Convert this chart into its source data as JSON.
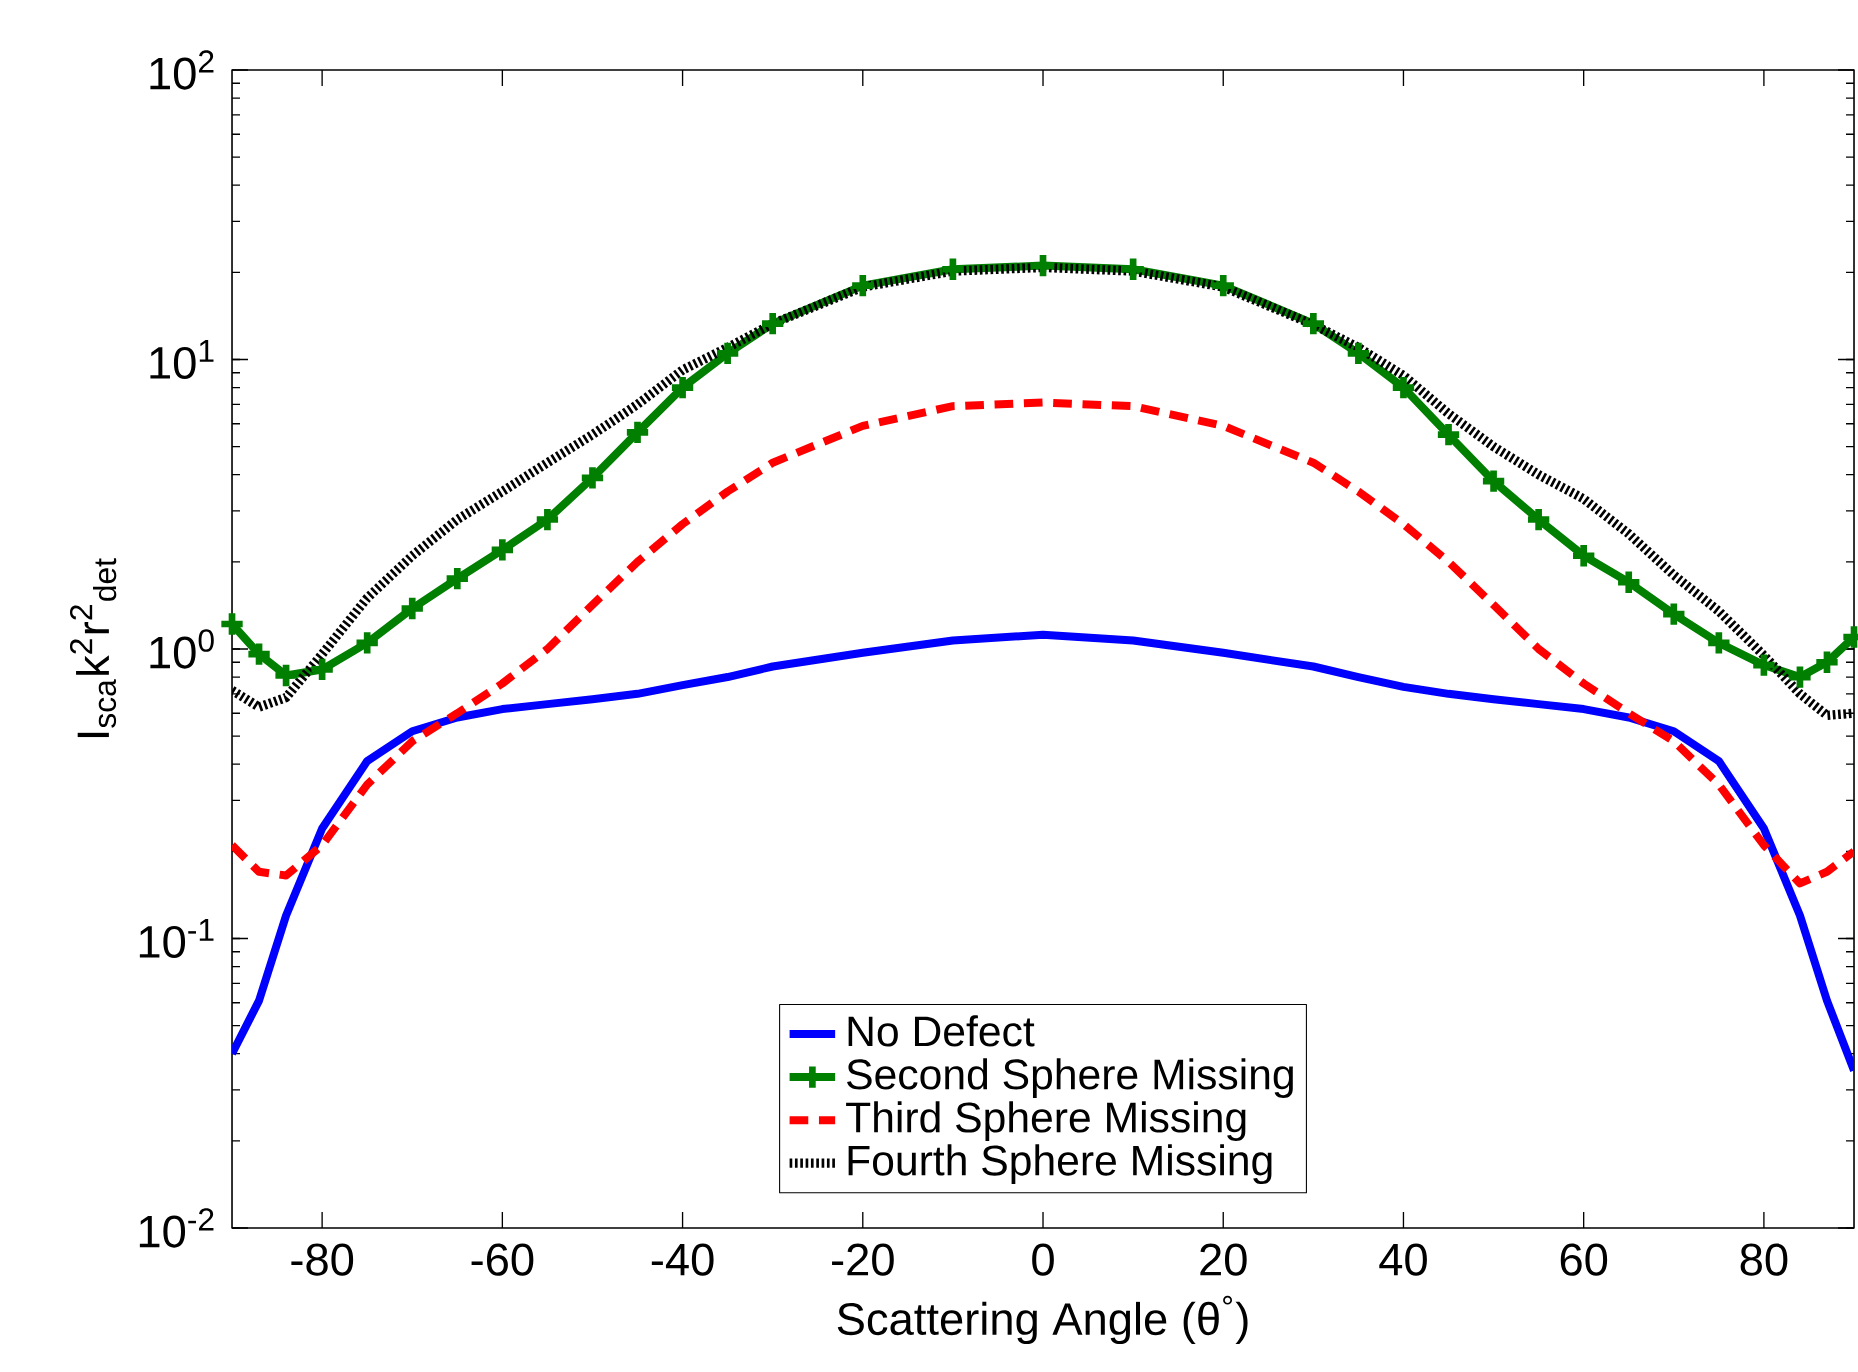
{
  "chart_data": {
    "type": "line",
    "xlabel": "Scattering Angle (θ$^{°}$)",
    "ylabel": "I$_{sca}$k$^{2}$r$^{2}$$_{det}$",
    "x": [
      -90,
      -87,
      -84,
      -80,
      -75,
      -70,
      -65,
      -60,
      -55,
      -50,
      -45,
      -40,
      -35,
      -30,
      -20,
      -10,
      0,
      10,
      20,
      30,
      35,
      40,
      45,
      50,
      55,
      60,
      65,
      70,
      75,
      80,
      84,
      87,
      90
    ],
    "series": [
      {
        "name": "No Defect",
        "color": "#0000ff",
        "line_style": "solid",
        "marker": "none",
        "values": [
          0.04,
          0.061,
          0.12,
          0.24,
          0.41,
          0.52,
          0.58,
          0.62,
          0.645,
          0.67,
          0.7,
          0.75,
          0.8,
          0.87,
          0.97,
          1.07,
          1.12,
          1.07,
          0.97,
          0.87,
          0.8,
          0.74,
          0.7,
          0.67,
          0.645,
          0.62,
          0.58,
          0.52,
          0.41,
          0.24,
          0.12,
          0.061,
          0.035
        ]
      },
      {
        "name": "Second Sphere Missing",
        "color": "#007f00",
        "line_style": "solid",
        "marker": "cross",
        "values": [
          1.22,
          0.96,
          0.81,
          0.85,
          1.05,
          1.38,
          1.75,
          2.2,
          2.8,
          3.9,
          5.6,
          8.0,
          10.5,
          13.3,
          18,
          20.5,
          21.1,
          20.5,
          18,
          13.3,
          10.5,
          8.0,
          5.5,
          3.8,
          2.8,
          2.1,
          1.7,
          1.32,
          1.05,
          0.88,
          0.8,
          0.9,
          1.1
        ]
      },
      {
        "name": "Third Sphere Missing",
        "color": "#ff0000",
        "line_style": "dashed",
        "marker": "none",
        "values": [
          0.21,
          0.17,
          0.165,
          0.21,
          0.34,
          0.48,
          0.6,
          0.76,
          1.0,
          1.42,
          2.0,
          2.7,
          3.5,
          4.4,
          5.9,
          6.9,
          7.1,
          6.9,
          5.9,
          4.4,
          3.5,
          2.7,
          2.0,
          1.42,
          1.0,
          0.76,
          0.6,
          0.48,
          0.34,
          0.21,
          0.155,
          0.17,
          0.2
        ]
      },
      {
        "name": "Fourth Sphere Missing",
        "color": "#000000",
        "line_style": "dotted",
        "marker": "none",
        "values": [
          0.72,
          0.63,
          0.68,
          0.96,
          1.5,
          2.1,
          2.8,
          3.5,
          4.4,
          5.5,
          7.0,
          9.2,
          11,
          13.3,
          17.8,
          20.2,
          20.8,
          20.2,
          17.8,
          13.2,
          11,
          8.8,
          6.5,
          5.0,
          4.0,
          3.3,
          2.5,
          1.8,
          1.35,
          0.95,
          0.7,
          0.59,
          0.6
        ]
      }
    ],
    "log": "y",
    "xlim": [
      -90,
      90
    ],
    "ylim": [
      0.01,
      100
    ],
    "xticks": [
      -80,
      -60,
      -40,
      -20,
      0,
      20,
      40,
      60,
      80
    ],
    "yticks": [
      {
        "value": 0.01,
        "label": "10$^{-2}$"
      },
      {
        "value": 0.1,
        "label": "10$^{-1}$"
      },
      {
        "value": 1,
        "label": "10$^{0}$"
      },
      {
        "value": 10,
        "label": "10$^{1}$"
      },
      {
        "value": 100,
        "label": "10$^{2}$"
      }
    ],
    "legend": "bottom",
    "grid": false
  }
}
